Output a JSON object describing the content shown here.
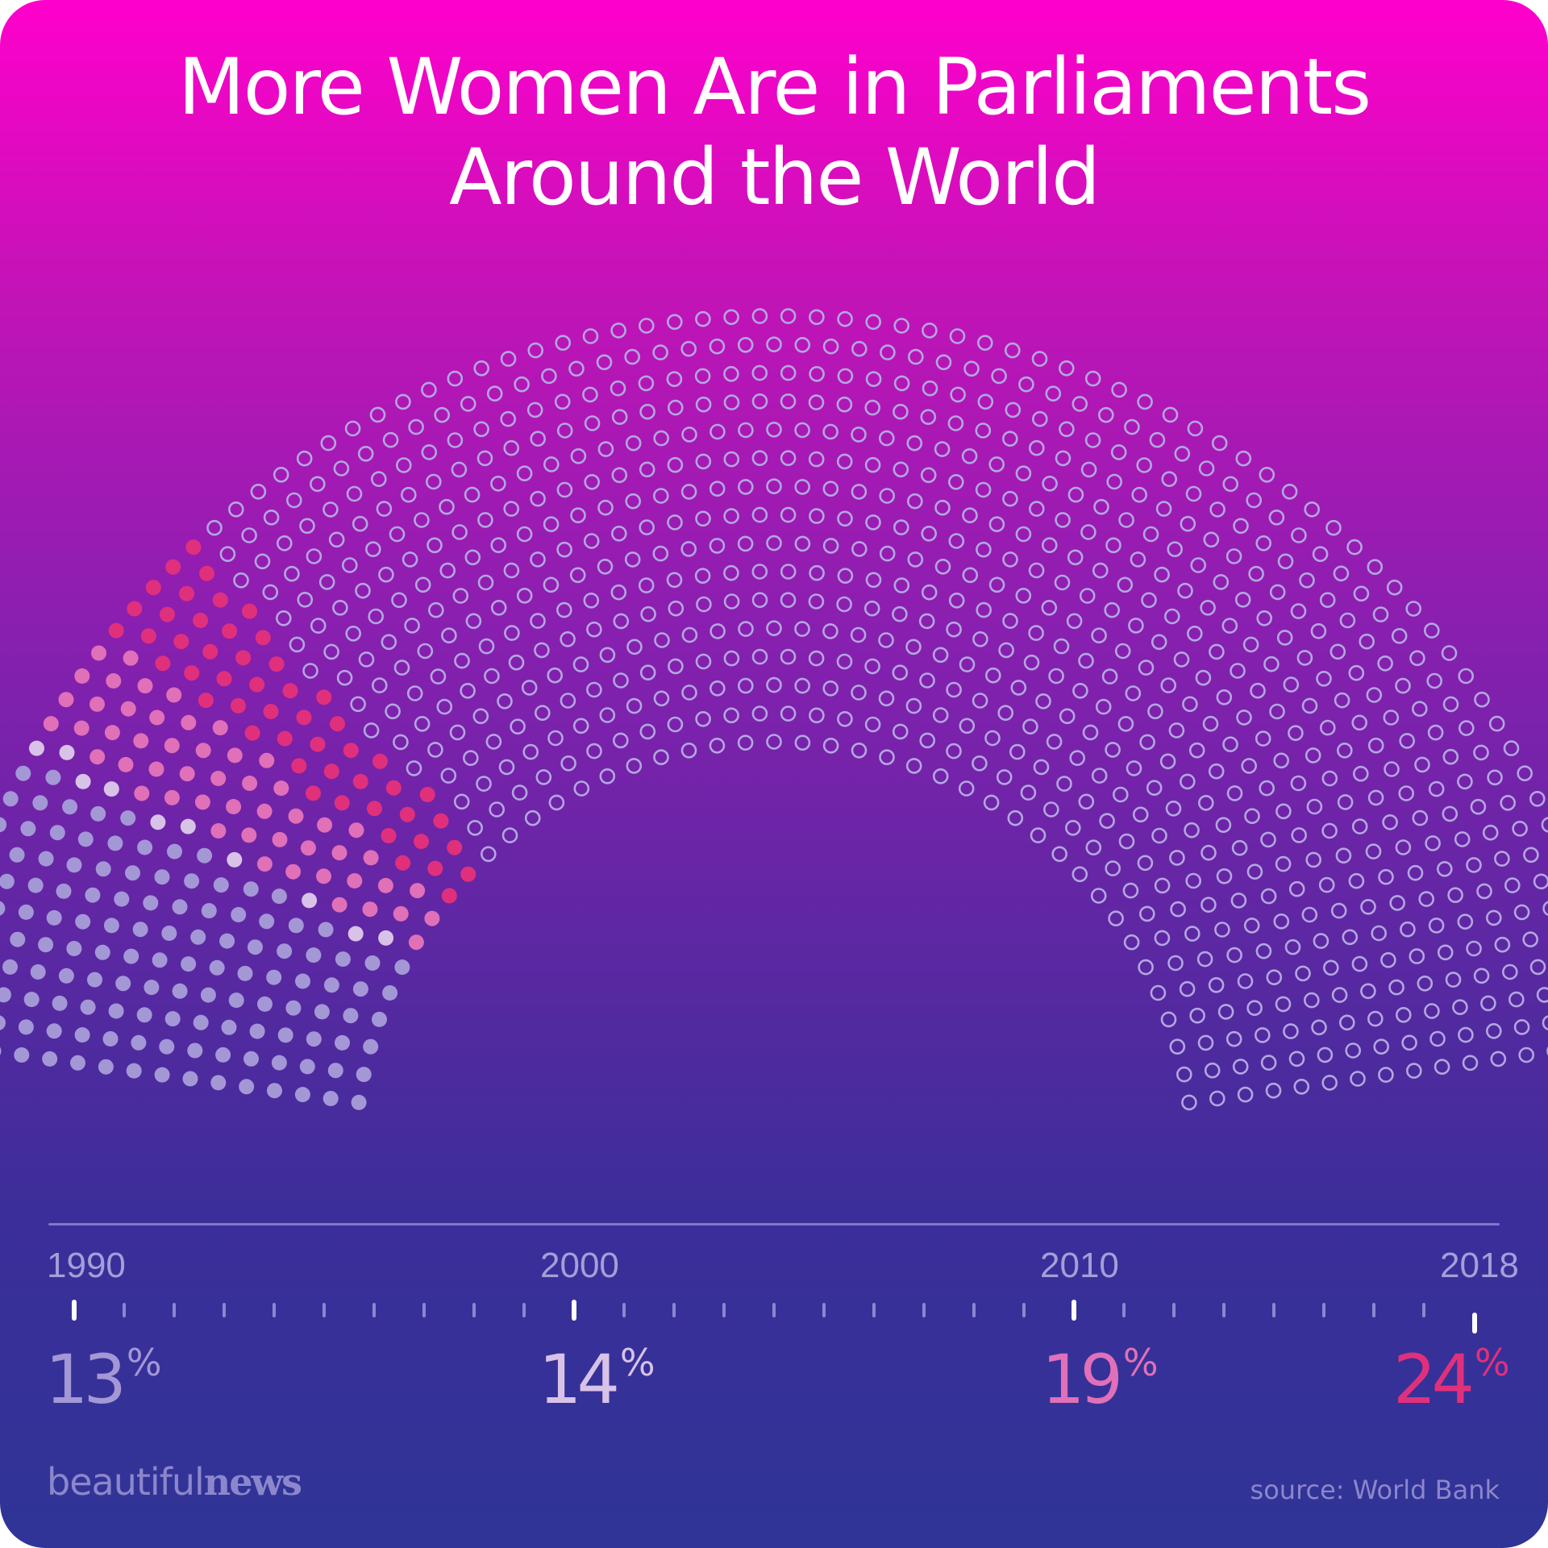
{
  "title_line1": "More Women Are in Parliaments",
  "title_line2": "Around the World",
  "chart_data": {
    "type": "hemicycle",
    "description_of_encoding": "",
    "x": [
      1990,
      2000,
      2010,
      2018
    ],
    "year_labels": [
      "1990",
      "2000",
      "2010",
      "2018"
    ],
    "values_percent": [
      13,
      14,
      19,
      24
    ],
    "value_labels": [
      "13",
      "14",
      "19",
      "24"
    ],
    "unit": "%",
    "series_colors": [
      "#a497d6",
      "#d8c2e8",
      "#e070b8",
      "#e0307c"
    ],
    "empty_seat_color": "#b3a6e0",
    "axis_range": [
      1990,
      2018
    ]
  },
  "footer": {
    "logo_light": "beautiful",
    "logo_bold": "news",
    "source": "source: World Bank"
  }
}
